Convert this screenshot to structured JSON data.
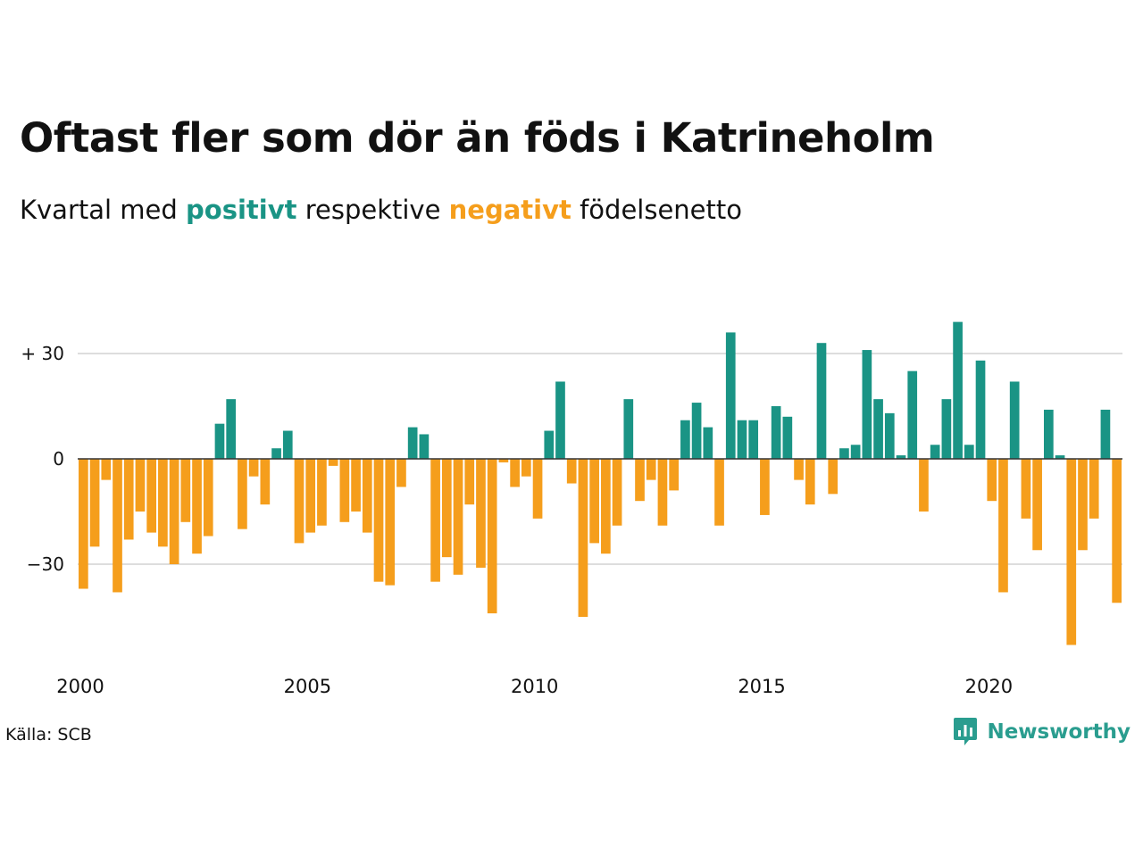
{
  "title": "Oftast fler som dör än föds i Katrineholm",
  "subtitle": {
    "prefix": "Kvartal med ",
    "positive_word": "positivt",
    "middle": " respektive ",
    "negative_word": "negativt",
    "suffix": " födelsenetto"
  },
  "source": "Källa: SCB",
  "brand": {
    "name": "Newsworthy",
    "icon": "newsworthy-logo-icon"
  },
  "colors": {
    "positive": "#1a9485",
    "negative": "#f59e1c",
    "grid": "#dddddd",
    "zero": "#333333"
  },
  "chart_data": {
    "type": "bar",
    "x_start_year": 2000,
    "periods_per_year": 4,
    "x_ticks": [
      "2000",
      "2005",
      "2010",
      "2015",
      "2020"
    ],
    "y_ticks": [
      {
        "value": 30,
        "label": "+ 30"
      },
      {
        "value": 0,
        "label": "0"
      },
      {
        "value": -30,
        "label": "−30"
      }
    ],
    "ylim": [
      -55,
      40
    ],
    "grid": true,
    "values": [
      -37,
      -25,
      -6,
      -38,
      -23,
      -15,
      -21,
      -25,
      -30,
      -18,
      -27,
      -22,
      10,
      17,
      -20,
      -5,
      -13,
      3,
      8,
      -24,
      -21,
      -19,
      -2,
      -18,
      -15,
      -21,
      -35,
      -36,
      -8,
      9,
      7,
      -35,
      -28,
      -33,
      -13,
      -31,
      -44,
      -1,
      -8,
      -5,
      -17,
      8,
      22,
      -7,
      -45,
      -24,
      -27,
      -19,
      17,
      -12,
      -6,
      -19,
      -9,
      11,
      16,
      9,
      -19,
      36,
      11,
      11,
      -16,
      15,
      12,
      -6,
      -13,
      33,
      -10,
      3,
      4,
      31,
      17,
      13,
      1,
      25,
      -15,
      4,
      17,
      39,
      4,
      28,
      -12,
      -38,
      22,
      -17,
      -26,
      14,
      1,
      -53,
      -26,
      -17,
      14,
      -41
    ]
  }
}
